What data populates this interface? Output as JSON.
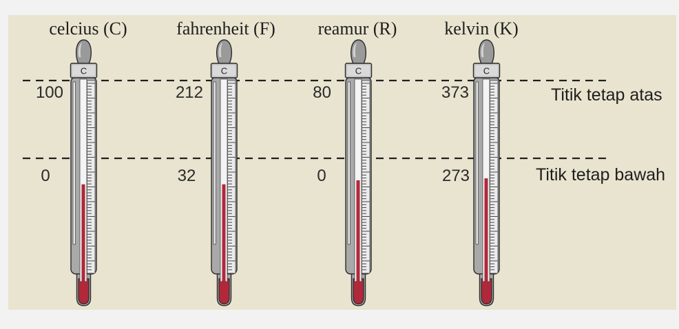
{
  "colors": {
    "page_background": "#f2f2f2",
    "panel": "#e8e4cf",
    "liquid": "#b0283a",
    "thermometer": "#a9a9a9",
    "guide_line": "#1f1f1f"
  },
  "thermometers": [
    {
      "label": "celcius (C)",
      "cap_letter": "C",
      "upper_value": "100",
      "lower_value": "0",
      "liquid_level": 0.48
    },
    {
      "label": "fahrenheit (F)",
      "cap_letter": "C",
      "upper_value": "212",
      "lower_value": "32",
      "liquid_level": 0.48
    },
    {
      "label": "reamur (R)",
      "cap_letter": "C",
      "upper_value": "80",
      "lower_value": "0",
      "liquid_level": 0.5
    },
    {
      "label": "kelvin (K)",
      "cap_letter": "C",
      "upper_value": "373",
      "lower_value": "273",
      "liquid_level": 0.51
    }
  ],
  "reference_lines": {
    "upper_label": "Titik tetap atas",
    "lower_label": "Titik tetap bawah"
  }
}
